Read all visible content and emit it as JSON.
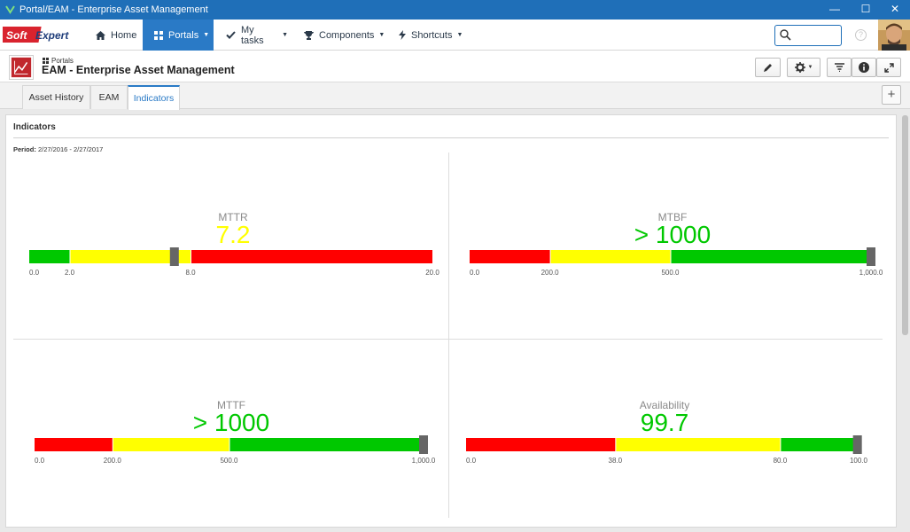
{
  "window": {
    "title": "Portal/EAM - Enterprise Asset Management",
    "minimize": "—",
    "maximize": "☐",
    "close": "✕"
  },
  "nav": {
    "logo_text": "SoftExpert",
    "items": [
      {
        "label": "Home",
        "icon": "home-icon"
      },
      {
        "label": "Portals",
        "icon": "grid-icon"
      },
      {
        "label": "My tasks",
        "icon": "check-icon"
      },
      {
        "label": "Components",
        "icon": "trophy-icon"
      },
      {
        "label": "Shortcuts",
        "icon": "bolt-icon"
      }
    ],
    "search_placeholder": "",
    "help": "?"
  },
  "header": {
    "breadcrumb": "Portals",
    "title": "EAM - Enterprise Asset Management"
  },
  "tabs": [
    {
      "label": "Asset History"
    },
    {
      "label": "EAM"
    },
    {
      "label": "Indicators"
    }
  ],
  "add_tab": "+",
  "panel": {
    "title": "Indicators",
    "period_label": "Period:",
    "period_value": "2/27/2016 - 2/27/2017"
  },
  "colors": {
    "red": "#ff0000",
    "yellow": "#ffff00",
    "green": "#00c800",
    "marker": "#666666",
    "accent": "#2a7ac6"
  },
  "gauges": [
    {
      "label": "MTTR",
      "value_text": "7.2",
      "value": 7.2,
      "value_color": "#ffff00",
      "min": 0,
      "max": 20,
      "segments": [
        {
          "from": 0,
          "to": 2,
          "color": "green"
        },
        {
          "from": 2,
          "to": 8,
          "color": "yellow"
        },
        {
          "from": 8,
          "to": 20,
          "color": "red"
        }
      ],
      "ticks": [
        "0.0",
        "2.0",
        "8.0",
        "20.0"
      ],
      "tick_values": [
        0,
        2,
        8,
        20
      ]
    },
    {
      "label": "MTBF",
      "value_text": "> 1000",
      "value": 1000,
      "value_color": "#00c800",
      "min": 0,
      "max": 1000,
      "segments": [
        {
          "from": 0,
          "to": 200,
          "color": "red"
        },
        {
          "from": 200,
          "to": 500,
          "color": "yellow"
        },
        {
          "from": 500,
          "to": 1000,
          "color": "green"
        }
      ],
      "ticks": [
        "0.0",
        "200.0",
        "500.0",
        "1,000.0"
      ],
      "tick_values": [
        0,
        200,
        500,
        1000
      ]
    },
    {
      "label": "MTTF",
      "value_text": "> 1000",
      "value": 1000,
      "value_color": "#00c800",
      "min": 0,
      "max": 1000,
      "segments": [
        {
          "from": 0,
          "to": 200,
          "color": "red"
        },
        {
          "from": 200,
          "to": 500,
          "color": "yellow"
        },
        {
          "from": 500,
          "to": 1000,
          "color": "green"
        }
      ],
      "ticks": [
        "0.0",
        "200.0",
        "500.0",
        "1,000.0"
      ],
      "tick_values": [
        0,
        200,
        500,
        1000
      ]
    },
    {
      "label": "Availability",
      "value_text": "99.7",
      "value": 99.7,
      "value_color": "#00c800",
      "min": 0,
      "max": 100,
      "segments": [
        {
          "from": 0,
          "to": 38,
          "color": "red"
        },
        {
          "from": 38,
          "to": 80,
          "color": "yellow"
        },
        {
          "from": 80,
          "to": 100,
          "color": "green"
        }
      ],
      "ticks": [
        "0.0",
        "38.0",
        "80.0",
        "100.0"
      ],
      "tick_values": [
        0,
        38,
        80,
        100
      ]
    }
  ]
}
